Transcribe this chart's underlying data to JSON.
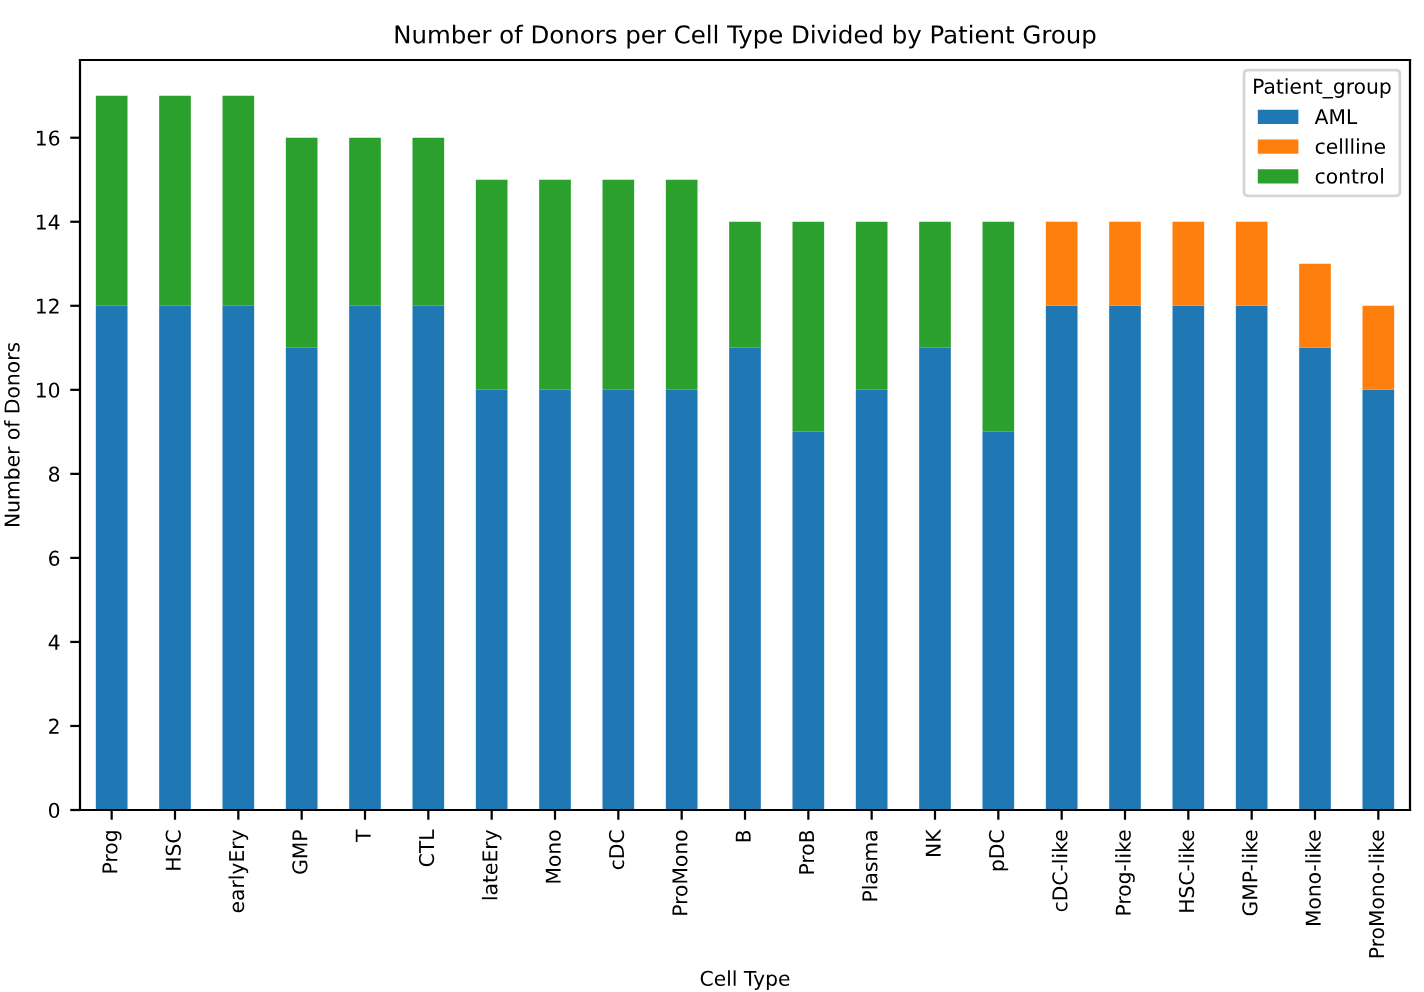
{
  "chart_data": {
    "type": "bar",
    "title": "Number of Donors per Cell Type Divided by Patient Group",
    "xlabel": "Cell Type",
    "ylabel": "Number of Donors",
    "legend_title": "Patient_group",
    "stacked": true,
    "legend": "top right",
    "grid": false,
    "categories": [
      "Prog",
      "HSC",
      "earlyEry",
      "GMP",
      "T",
      "CTL",
      "lateEry",
      "Mono",
      "cDC",
      "ProMono",
      "B",
      "ProB",
      "Plasma",
      "NK",
      "pDC",
      "cDC-like",
      "Prog-like",
      "HSC-like",
      "GMP-like",
      "Mono-like",
      "ProMono-like"
    ],
    "series": [
      {
        "name": "AML",
        "color": "#1f77b4",
        "values": [
          12,
          12,
          12,
          11,
          12,
          12,
          10,
          10,
          10,
          10,
          11,
          9,
          10,
          11,
          9,
          12,
          12,
          12,
          12,
          11,
          10
        ]
      },
      {
        "name": "cellline",
        "color": "#ff7f0e",
        "values": [
          null,
          null,
          null,
          null,
          null,
          null,
          null,
          null,
          null,
          null,
          null,
          null,
          null,
          null,
          null,
          2,
          2,
          2,
          2,
          2,
          2
        ]
      },
      {
        "name": "control",
        "color": "#2ca02c",
        "values": [
          5,
          5,
          5,
          5,
          4,
          4,
          5,
          5,
          5,
          5,
          3,
          5,
          4,
          3,
          5,
          null,
          null,
          null,
          null,
          null,
          null
        ]
      }
    ],
    "ylim": [
      0,
      17.85
    ],
    "yticks": [
      0,
      2,
      4,
      6,
      8,
      10,
      12,
      14,
      16
    ]
  }
}
